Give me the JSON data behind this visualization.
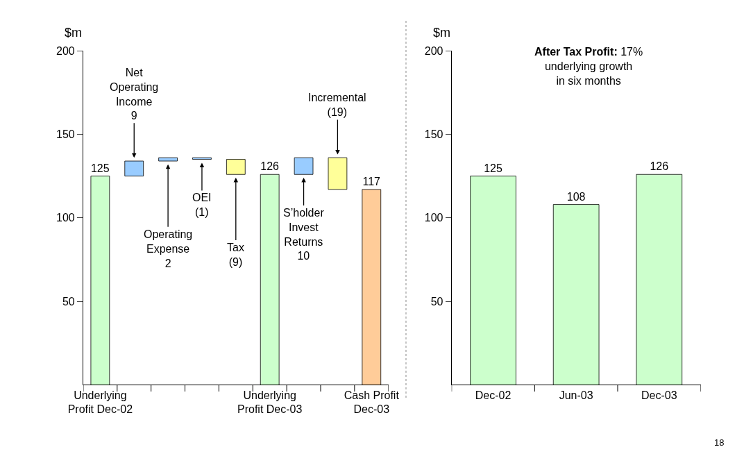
{
  "chart_data": [
    {
      "type": "bar",
      "ylabel": "$m",
      "categories": [
        "Underlying\nProfit Dec-02",
        null,
        null,
        null,
        null,
        "Underlying\nProfit Dec-03",
        null,
        null,
        "Cash Profit\nDec-03"
      ],
      "values": [
        125,
        9,
        2,
        -1,
        -9,
        126,
        10,
        -19,
        117
      ],
      "base": [
        0,
        125,
        134,
        136,
        135,
        0,
        126,
        136,
        0
      ],
      "colors": [
        "#ccffcc",
        "#99ccff",
        "#99ccff",
        "#99ccff",
        "#ffff99",
        "#ccffcc",
        "#99ccff",
        "#ffff99",
        "#ffcc99"
      ],
      "value_labels": [
        "125",
        null,
        null,
        null,
        null,
        "126",
        null,
        null,
        "117"
      ],
      "annotations": [
        {
          "text": "Net\nOperating\nIncome\n9",
          "y": 134
        },
        {
          "text": "Operating\nExpense\n2",
          "y": 134
        },
        {
          "text": "OEI\n(1)",
          "y": 135
        },
        {
          "text": "Tax\n(9)",
          "y": 126
        },
        {
          "text": "S’holder\nInvest\nReturns\n10",
          "y": 126
        },
        {
          "text": "Incremental\n(19)",
          "y": 136
        }
      ],
      "ylim": [
        0,
        200
      ],
      "yticks": [
        50,
        100,
        150,
        200
      ]
    },
    {
      "type": "bar",
      "title": "After Tax Profit:",
      "subtitle": "17%\nunderlying growth\nin six months",
      "ylabel": "$m",
      "categories": [
        "Dec-02",
        "Jun-03",
        "Dec-03"
      ],
      "values": [
        125,
        108,
        126
      ],
      "color": "#ccffcc",
      "data_labels": true,
      "annotations": [
        "18"
      ],
      "ylim": [
        0,
        200
      ],
      "yticks": [
        50,
        100,
        150,
        200
      ]
    }
  ]
}
